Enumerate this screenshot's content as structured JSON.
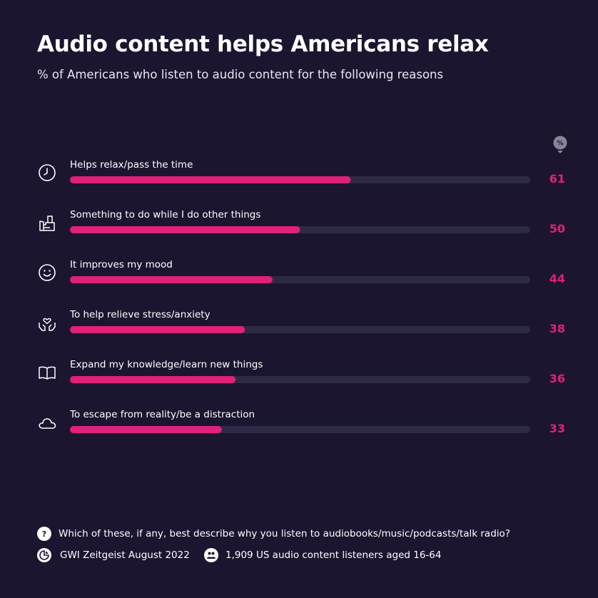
{
  "title": "Audio content helps Americans relax",
  "subtitle": "% of Americans who listen to audio content for the following reasons",
  "percent_icon_label": "%",
  "colors": {
    "background": "#1b1530",
    "bar_fill": "#e0207a",
    "bar_track": "#2e2a45",
    "value_text": "#e0207a",
    "icon": "#ffffff"
  },
  "chart_data": {
    "type": "bar",
    "orientation": "horizontal",
    "categories": [
      "Helps relax/pass the time",
      "Something to do while I do other things",
      "It improves my mood",
      "To help relieve stress/anxiety",
      "Expand my knowledge/learn new things",
      "To escape from reality/be a distraction"
    ],
    "values": [
      61,
      50,
      44,
      38,
      36,
      33
    ],
    "icons": [
      "clock-icon",
      "hand-bag-icon",
      "smiley-icon",
      "heart-hands-icon",
      "book-icon",
      "cloud-icon"
    ],
    "xlim": [
      0,
      100
    ],
    "unit": "%",
    "grid": false,
    "legend": "none"
  },
  "footer": {
    "question": "Which of these, if any, best describe why you listen to audiobooks/music/podcasts/talk radio?",
    "source": "GWI Zeitgeist August 2022",
    "sample": "1,909 US audio content listeners aged 16-64"
  }
}
